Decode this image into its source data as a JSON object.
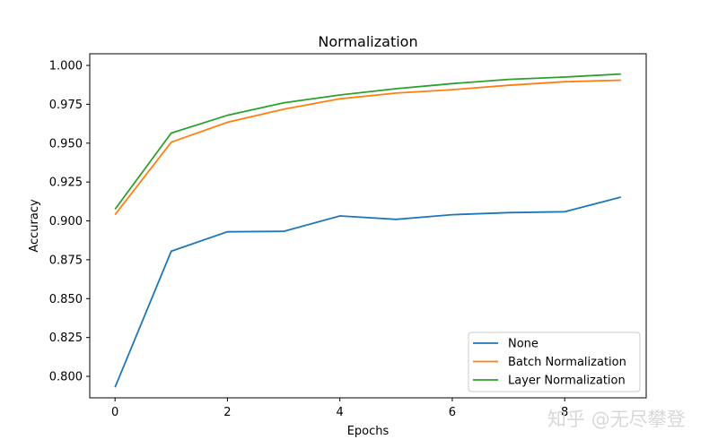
{
  "chart_data": {
    "type": "line",
    "title": "Normalization",
    "xlabel": "Epochs",
    "ylabel": "Accuracy",
    "x": [
      0,
      1,
      2,
      3,
      4,
      5,
      6,
      7,
      8,
      9
    ],
    "xlim": [
      -0.45,
      9.45
    ],
    "ylim": [
      0.7862,
      1.0075
    ],
    "xticks": [
      "0",
      "2",
      "4",
      "6",
      "8"
    ],
    "yticks": [
      "0.800",
      "0.825",
      "0.850",
      "0.875",
      "0.900",
      "0.925",
      "0.950",
      "0.975",
      "1.000"
    ],
    "grid": false,
    "legend_position": "lower right",
    "series": [
      {
        "name": "None",
        "color": "#1f77b4",
        "values": [
          0.793,
          0.8805,
          0.893,
          0.8933,
          0.9032,
          0.901,
          0.904,
          0.9053,
          0.9059,
          0.9153
        ]
      },
      {
        "name": "Batch Normalization",
        "color": "#ff7f0e",
        "values": [
          0.904,
          0.9506,
          0.9634,
          0.9718,
          0.9785,
          0.9822,
          0.9844,
          0.9872,
          0.9895,
          0.9905
        ]
      },
      {
        "name": "Layer Normalization",
        "color": "#2ca02c",
        "values": [
          0.9075,
          0.9565,
          0.9679,
          0.976,
          0.981,
          0.985,
          0.9883,
          0.991,
          0.9925,
          0.9945
        ]
      }
    ]
  },
  "watermark": "知乎 @无尽攀登"
}
